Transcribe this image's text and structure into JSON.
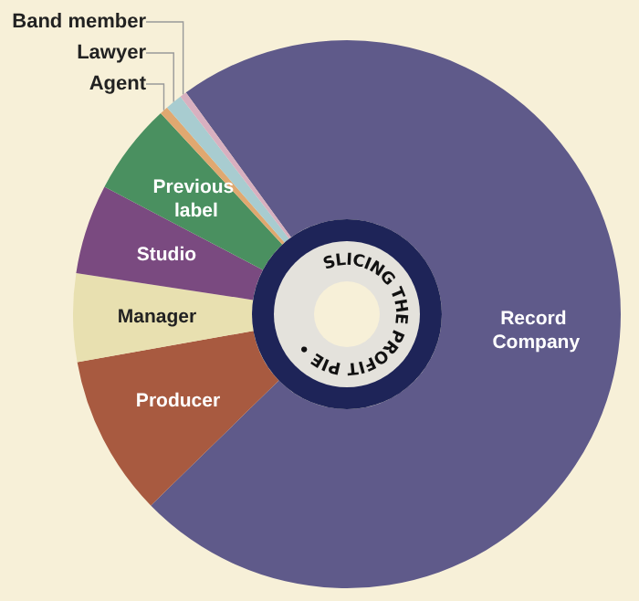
{
  "chart_data": {
    "type": "donut",
    "title": "SLICING THE PROFIT PIE •",
    "categories": [
      "Record Company",
      "Producer",
      "Manager",
      "Studio",
      "Previous label",
      "Agent",
      "Lawyer",
      "Band member"
    ],
    "values": [
      72.7,
      9.5,
      5.2,
      5.3,
      5.4,
      0.5,
      1.0,
      0.4
    ],
    "colors": [
      "#5f5a8a",
      "#a85a40",
      "#e8e0b0",
      "#7a4a80",
      "#4a9060",
      "#e0a870",
      "#a8ccd0",
      "#d8b0c0"
    ],
    "legend": false
  }
}
